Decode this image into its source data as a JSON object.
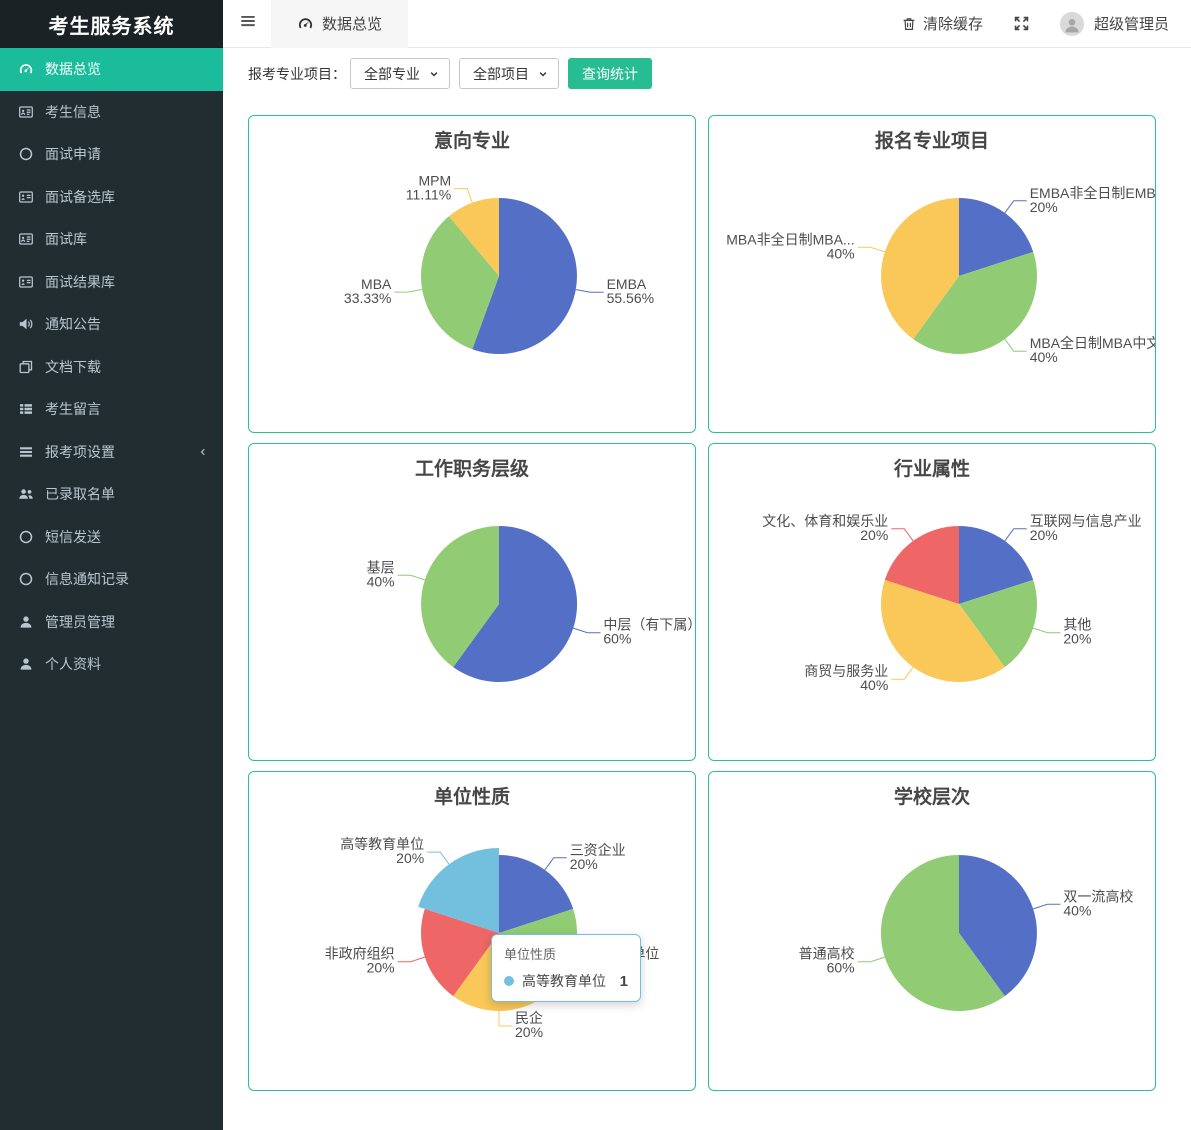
{
  "app": {
    "title": "考生服务系统"
  },
  "sidebar": {
    "items": [
      {
        "icon": "gauge-icon",
        "label": "数据总览",
        "active": true
      },
      {
        "icon": "id-card-icon",
        "label": "考生信息"
      },
      {
        "icon": "circle-icon",
        "label": "面试申请"
      },
      {
        "icon": "address-card-icon",
        "label": "面试备选库"
      },
      {
        "icon": "id-card-icon",
        "label": "面试库"
      },
      {
        "icon": "address-card-icon",
        "label": "面试结果库"
      },
      {
        "icon": "speaker-icon",
        "label": "通知公告"
      },
      {
        "icon": "copy-icon",
        "label": "文档下载"
      },
      {
        "icon": "th-list-icon",
        "label": "考生留言"
      },
      {
        "icon": "list-icon",
        "label": "报考项设置",
        "chevron": true
      },
      {
        "icon": "users-icon",
        "label": "已录取名单"
      },
      {
        "icon": "circle-icon",
        "label": "短信发送"
      },
      {
        "icon": "circle-icon",
        "label": "信息通知记录"
      },
      {
        "icon": "user-icon",
        "label": "管理员管理"
      },
      {
        "icon": "user-icon",
        "label": "个人资料"
      }
    ]
  },
  "topbar": {
    "tab": {
      "icon": "gauge-icon",
      "label": "数据总览"
    },
    "clear_cache_label": "清除缓存",
    "username": "超级管理员"
  },
  "filters": {
    "label": "报考专业项目：",
    "major_select": "全部专业",
    "project_select": "全部项目",
    "submit_label": "查询统计"
  },
  "colors": {
    "sidebar_active": "#1abc9c",
    "button": "#26bd92",
    "card_border": "#2ebf9a",
    "palette": [
      "#5470c6",
      "#91cc75",
      "#fac858",
      "#ee6666",
      "#73c0de"
    ]
  },
  "chart_data": [
    {
      "type": "pie",
      "title": "意向专业",
      "series": [
        {
          "name": "EMBA",
          "value": 5,
          "percent": 55.56,
          "percent_label": "55.56%"
        },
        {
          "name": "MBA",
          "value": 3,
          "percent": 33.33,
          "percent_label": "33.33%"
        },
        {
          "name": "MPM",
          "value": 1,
          "percent": 11.11,
          "percent_label": "11.11%"
        }
      ]
    },
    {
      "type": "pie",
      "title": "报名专业项目",
      "series": [
        {
          "name": "EMBA非全日制EMBA长三",
          "value": 1,
          "percent": 20,
          "percent_label": "20%"
        },
        {
          "name": "MBA全日制MBA中文班",
          "value": 2,
          "percent": 40,
          "percent_label": "40%"
        },
        {
          "name": "MBA非全日制MBA...",
          "value": 2,
          "percent": 40,
          "percent_label": "40%"
        }
      ]
    },
    {
      "type": "pie",
      "title": "工作职务层级",
      "series": [
        {
          "name": "中层（有下属）",
          "value": 3,
          "percent": 60,
          "percent_label": "60%"
        },
        {
          "name": "基层",
          "value": 2,
          "percent": 40,
          "percent_label": "40%"
        }
      ]
    },
    {
      "type": "pie",
      "title": "行业属性",
      "series": [
        {
          "name": "互联网与信息产业",
          "value": 1,
          "percent": 20,
          "percent_label": "20%"
        },
        {
          "name": "其他",
          "value": 1,
          "percent": 20,
          "percent_label": "20%"
        },
        {
          "name": "商贸与服务业",
          "value": 2,
          "percent": 40,
          "percent_label": "40%"
        },
        {
          "name": "文化、体育和娱乐业",
          "value": 1,
          "percent": 20,
          "percent_label": "20%"
        }
      ]
    },
    {
      "type": "pie",
      "title": "单位性质",
      "series": [
        {
          "name": "三资企业",
          "value": 1,
          "percent": 20,
          "percent_label": "20%"
        },
        {
          "name": "事业单位",
          "value": 1,
          "percent": 20,
          "percent_label": "20%"
        },
        {
          "name": "民企",
          "value": 1,
          "percent": 20,
          "percent_label": "20%"
        },
        {
          "name": "非政府组织",
          "value": 1,
          "percent": 20,
          "percent_label": "20%"
        },
        {
          "name": "高等教育单位",
          "value": 1,
          "percent": 20,
          "percent_label": "20%",
          "hovered": true
        }
      ]
    },
    {
      "type": "pie",
      "title": "学校层次",
      "series": [
        {
          "name": "双一流高校",
          "value": 2,
          "percent": 40,
          "percent_label": "40%"
        },
        {
          "name": "普通高校",
          "value": 3,
          "percent": 60,
          "percent_label": "60%"
        }
      ]
    }
  ],
  "tooltip": {
    "chart_index": 4,
    "title": "单位性质",
    "item": "高等教育单位",
    "value": "1"
  }
}
